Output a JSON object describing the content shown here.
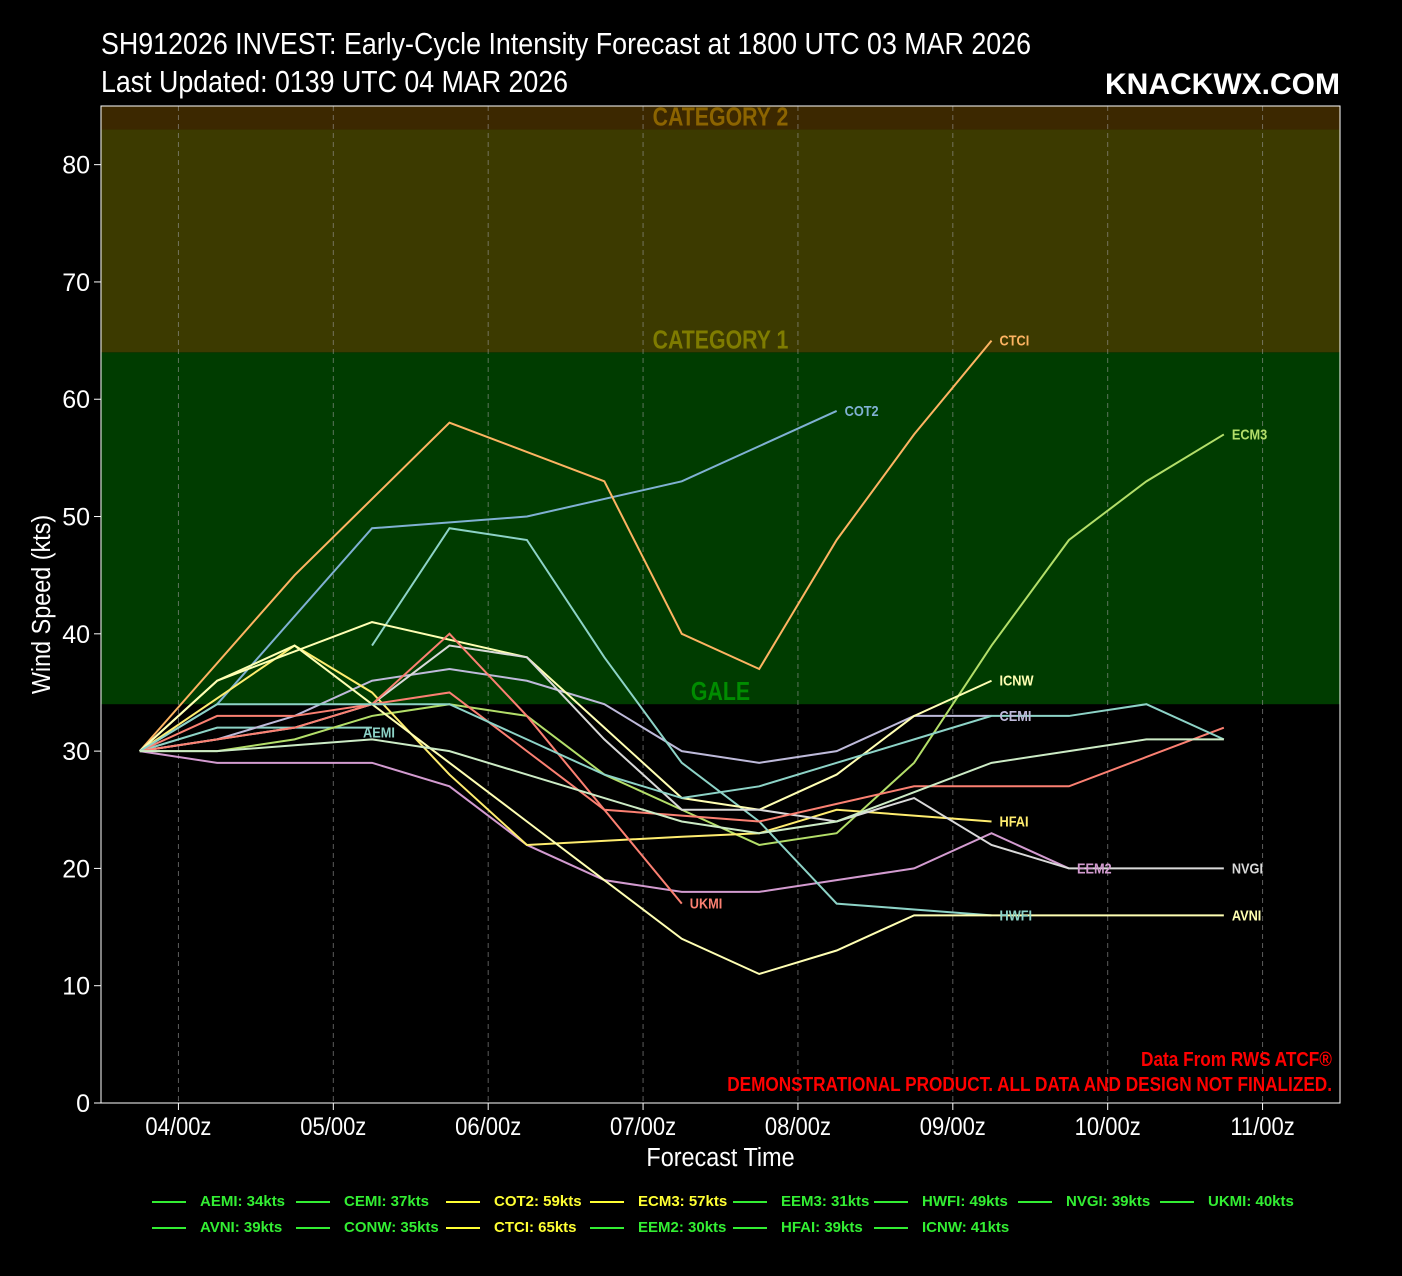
{
  "title_line1": "SH912026 INVEST: Early-Cycle Intensity Forecast at 1800 UTC 03 MAR 2026",
  "title_line2": "Last Updated: 0139 UTC 04 MAR 2026",
  "brand": "KNACKWX.COM",
  "credit_line1": "Data From RWS ATCF®",
  "credit_line2": "DEMONSTRATIONAL PRODUCT. ALL DATA AND DESIGN NOT FINALIZED.",
  "colors": {
    "background": "#000000",
    "gale_band": "#003c00",
    "cat1_band": "#3c3a00",
    "cat2_band": "#3c2800",
    "gale_text": "#008c00",
    "cat1_text": "#7f7c00",
    "cat2_text": "#8c6400",
    "credit_text": "#ff0000",
    "legend_text": "#33ee33"
  },
  "chart_data": {
    "type": "line",
    "xlabel": "Forecast Time",
    "ylabel": "Wind Speed (kts)",
    "xlim": [
      -6,
      186
    ],
    "ylim": [
      0,
      85
    ],
    "x_ticks": [
      {
        "hour": 6,
        "label": "04/00z"
      },
      {
        "hour": 30,
        "label": "05/00z"
      },
      {
        "hour": 54,
        "label": "06/00z"
      },
      {
        "hour": 78,
        "label": "07/00z"
      },
      {
        "hour": 102,
        "label": "08/00z"
      },
      {
        "hour": 126,
        "label": "09/00z"
      },
      {
        "hour": 150,
        "label": "10/00z"
      },
      {
        "hour": 174,
        "label": "11/00z"
      }
    ],
    "y_ticks": [
      0,
      10,
      20,
      30,
      40,
      50,
      60,
      70,
      80
    ],
    "grid": "vertical dashed",
    "bands": [
      {
        "label": "GALE",
        "from": 34,
        "to": 64
      },
      {
        "label": "CATEGORY 1",
        "from": 64,
        "to": 83
      },
      {
        "label": "CATEGORY 2",
        "from": 83,
        "to": 96
      }
    ],
    "series": [
      {
        "name": "AEMI",
        "color": "#8dd3c7",
        "label_at": "mid",
        "x": [
          0,
          12,
          24,
          36
        ],
        "y": [
          30,
          32,
          32,
          32
        ]
      },
      {
        "name": "CEMI",
        "color": "#bebada",
        "x": [
          0,
          12,
          24,
          36,
          48,
          60,
          72,
          84,
          96,
          108,
          120,
          132
        ],
        "y": [
          30,
          31,
          33,
          36,
          37,
          36,
          34,
          30,
          29,
          30,
          33,
          33
        ]
      },
      {
        "name": "COT2",
        "color": "#80b1d3",
        "x": [
          0,
          12,
          36,
          60,
          84,
          108
        ],
        "y": [
          30,
          34,
          49,
          50,
          53,
          59
        ]
      },
      {
        "name": "CTCI",
        "color": "#fdb462",
        "x": [
          0,
          24,
          48,
          72,
          84,
          96,
          108,
          120,
          132
        ],
        "y": [
          30,
          45,
          58,
          53,
          40,
          37,
          48,
          57,
          65
        ]
      },
      {
        "name": "ECM3",
        "color": "#b3de69",
        "x": [
          0,
          12,
          24,
          36,
          48,
          60,
          72,
          84,
          96,
          108,
          120,
          132,
          144,
          156,
          168
        ],
        "y": [
          30,
          30,
          31,
          33,
          34,
          33,
          28,
          25,
          22,
          23,
          29,
          39,
          48,
          53,
          57
        ]
      },
      {
        "name": "EEM2",
        "color": "#d39bd0",
        "x": [
          0,
          12,
          36,
          48,
          60,
          72,
          84,
          96,
          108,
          120,
          132,
          144
        ],
        "y": [
          30,
          29,
          29,
          27,
          22,
          19,
          18,
          18,
          19,
          20,
          23,
          20
        ]
      },
      {
        "name": "HFAI",
        "color": "#ffed6f",
        "x": [
          0,
          24,
          36,
          48,
          60,
          84,
          96,
          108,
          132
        ],
        "y": [
          30,
          39,
          35,
          28,
          22,
          22.7,
          23,
          25,
          24
        ]
      },
      {
        "name": "HWFI",
        "color": "#8dd3c7",
        "x": [
          36,
          48,
          60,
          72,
          84,
          96,
          108,
          120,
          132
        ],
        "y": [
          39,
          49,
          48,
          38,
          29,
          24,
          17,
          16.5,
          16
        ]
      },
      {
        "name": "ICNW",
        "color": "#ffffb3",
        "x": [
          0,
          12,
          36,
          60,
          72,
          84,
          96,
          108,
          120,
          132
        ],
        "y": [
          30,
          36,
          41,
          38,
          32,
          26,
          25,
          28,
          33,
          36
        ]
      },
      {
        "name": "NVGI",
        "color": "#d9d9d9",
        "x": [
          0,
          12,
          24,
          36,
          48,
          60,
          72,
          84,
          96,
          108,
          120,
          132,
          144,
          156,
          168
        ],
        "y": [
          30,
          31,
          32,
          34,
          39,
          38,
          31,
          25,
          25,
          24,
          26,
          22,
          20,
          20,
          20
        ]
      },
      {
        "name": "AVNI",
        "color": "#ffffb3",
        "x": [
          0,
          12,
          24,
          36,
          48,
          60,
          72,
          84,
          96,
          108,
          120,
          132,
          144,
          156,
          168
        ],
        "y": [
          30,
          36,
          39,
          34,
          29,
          24,
          19,
          14,
          11,
          13,
          16,
          16,
          16,
          16,
          16
        ]
      },
      {
        "name": "UKMI",
        "color": "#fb8072",
        "x": [
          0,
          12,
          24,
          36,
          48,
          60,
          72,
          84
        ],
        "y": [
          30,
          33,
          33,
          34,
          40,
          33,
          25,
          17
        ]
      },
      {
        "name": "",
        "color": "#fb8072",
        "x": [
          0,
          12,
          24,
          36,
          48,
          60,
          72,
          84,
          96,
          108,
          120,
          132,
          144,
          156,
          168
        ],
        "y": [
          30,
          31,
          32,
          34,
          35,
          30,
          25,
          24.5,
          24,
          25.5,
          27,
          27,
          27,
          29.5,
          32
        ]
      },
      {
        "name": "",
        "color": "#8dd3c7",
        "x": [
          0,
          12,
          24,
          36,
          48,
          60,
          72,
          84,
          96,
          108,
          120,
          132,
          144,
          156,
          168
        ],
        "y": [
          30,
          34,
          34,
          34,
          34,
          31,
          28,
          26,
          27,
          29,
          31,
          33,
          33,
          34,
          31
        ]
      },
      {
        "name": "",
        "color": "#ccebc5",
        "x": [
          0,
          12,
          24,
          36,
          48,
          60,
          72,
          84,
          96,
          108,
          120,
          132,
          144,
          156,
          168
        ],
        "y": [
          30,
          30,
          30.5,
          31,
          30,
          28,
          26,
          24,
          23,
          24,
          26.5,
          29,
          30,
          31,
          31
        ]
      }
    ],
    "legend": [
      {
        "text": "AEMI: 34kts"
      },
      {
        "text": "CEMI: 37kts"
      },
      {
        "text": "COT2: 59kts"
      },
      {
        "text": "ECM3: 57kts"
      },
      {
        "text": "EEM3: 31kts"
      },
      {
        "text": "HWFI: 49kts"
      },
      {
        "text": "NVGI: 39kts"
      },
      {
        "text": "UKMI: 40kts"
      },
      {
        "text": "AVNI: 39kts"
      },
      {
        "text": "CONW: 35kts"
      },
      {
        "text": "CTCI: 65kts"
      },
      {
        "text": "EEM2: 30kts"
      },
      {
        "text": "HFAI: 39kts"
      },
      {
        "text": "ICNW: 41kts"
      }
    ]
  }
}
